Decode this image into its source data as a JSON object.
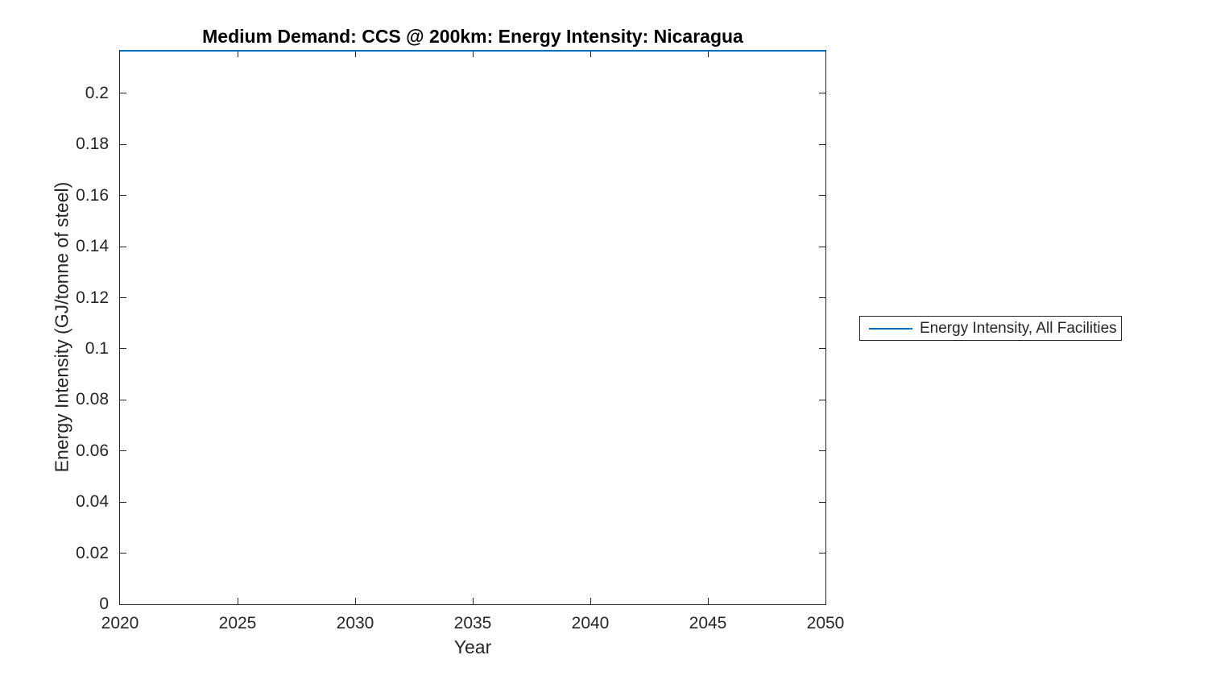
{
  "chart_data": {
    "type": "line",
    "title": "Medium Demand: CCS @ 200km: Energy Intensity: Nicaragua",
    "xlabel": "Year",
    "ylabel": "Energy Intensity (GJ/tonne of steel)",
    "xlim": [
      2020,
      2050
    ],
    "ylim": [
      0,
      0.2167
    ],
    "xticks": [
      2020,
      2025,
      2030,
      2035,
      2040,
      2045,
      2050
    ],
    "yticks": [
      0,
      0.02,
      0.04,
      0.06,
      0.08,
      0.1,
      0.12,
      0.14,
      0.16,
      0.18,
      0.2
    ],
    "ytick_labels": [
      "0",
      "0.02",
      "0.04",
      "0.06",
      "0.08",
      "0.1",
      "0.12",
      "0.14",
      "0.16",
      "0.18",
      "0.2"
    ],
    "grid": false,
    "box": true,
    "axis_color": "#262626",
    "background_color": "#ffffff",
    "legend": {
      "position": "east-outside",
      "entries": [
        "Energy Intensity, All Facilities"
      ]
    },
    "series": [
      {
        "name": "Energy Intensity, All Facilities",
        "color": "#0072BD",
        "x": [
          2020,
          2050
        ],
        "y": [
          0.2167,
          0.2167
        ],
        "note": "constant horizontal line coinciding with top of axes"
      }
    ]
  }
}
